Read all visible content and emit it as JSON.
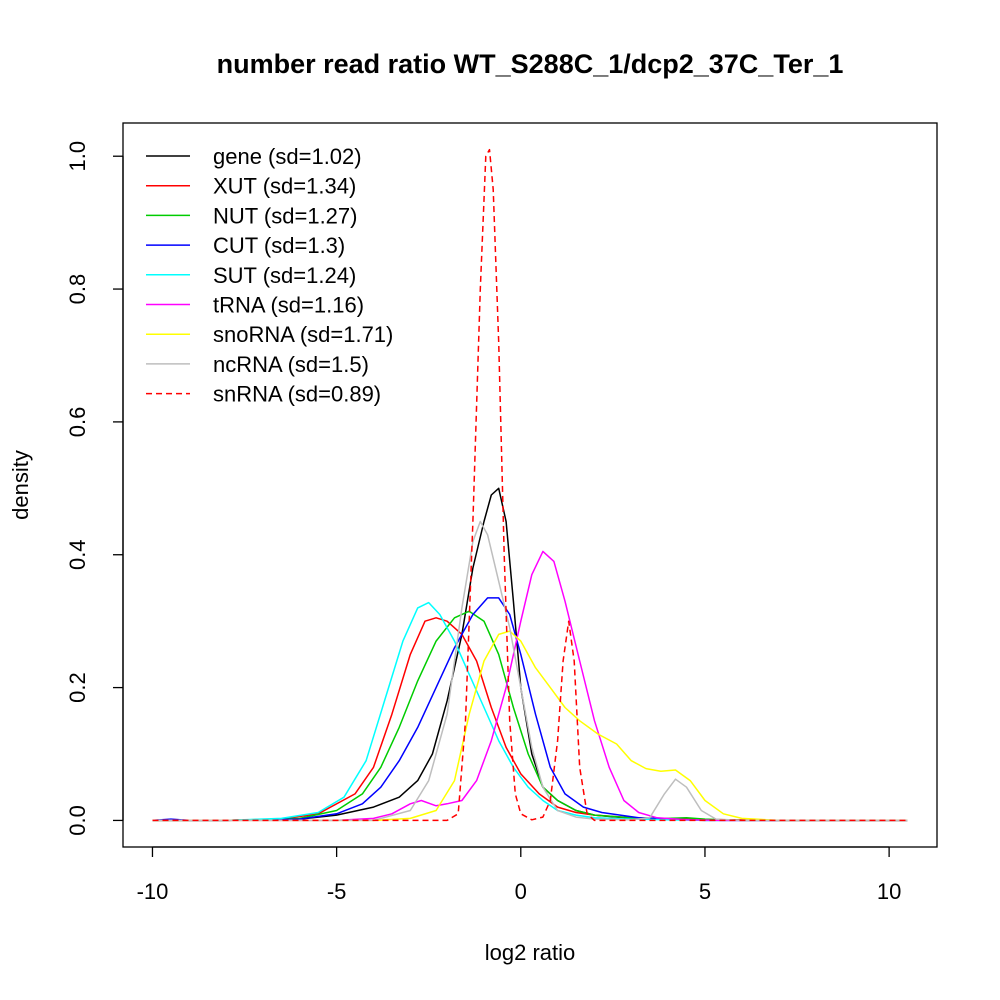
{
  "chart_data": {
    "type": "line",
    "title": "number read ratio WT_S288C_1/dcp2_37C_Ter_1",
    "xlabel": "log2 ratio",
    "ylabel": "density",
    "xlim": [
      -10.8,
      11.3
    ],
    "ylim": [
      -0.04,
      1.05
    ],
    "xticks": [
      -10,
      -5,
      0,
      5,
      10
    ],
    "xtick_labels": [
      "-10",
      "-5",
      "0",
      "5",
      "10"
    ],
    "yticks": [
      0.0,
      0.2,
      0.4,
      0.6,
      0.8,
      1.0
    ],
    "ytick_labels": [
      "0.0",
      "0.2",
      "0.4",
      "0.6",
      "0.8",
      "1.0"
    ],
    "legend_position": "top-left",
    "grid": false,
    "series": [
      {
        "name": "gene (sd=1.02)",
        "color": "#000000",
        "dash": "solid",
        "points": [
          [
            -10,
            0
          ],
          [
            -8,
            0
          ],
          [
            -6,
            0.002
          ],
          [
            -5,
            0.008
          ],
          [
            -4,
            0.02
          ],
          [
            -3.3,
            0.035
          ],
          [
            -2.8,
            0.06
          ],
          [
            -2.4,
            0.1
          ],
          [
            -2,
            0.18
          ],
          [
            -1.6,
            0.28
          ],
          [
            -1.3,
            0.38
          ],
          [
            -1,
            0.45
          ],
          [
            -0.8,
            0.49
          ],
          [
            -0.6,
            0.5
          ],
          [
            -0.4,
            0.45
          ],
          [
            -0.2,
            0.33
          ],
          [
            0,
            0.2
          ],
          [
            0.3,
            0.1
          ],
          [
            0.6,
            0.05
          ],
          [
            1,
            0.03
          ],
          [
            1.5,
            0.015
          ],
          [
            2,
            0.008
          ],
          [
            3,
            0.003
          ],
          [
            4,
            0.002
          ],
          [
            5,
            0.001
          ],
          [
            7,
            0
          ],
          [
            10.5,
            0
          ]
        ]
      },
      {
        "name": "XUT (sd=1.34)",
        "color": "#ff0000",
        "dash": "solid",
        "points": [
          [
            -10,
            0
          ],
          [
            -8,
            0
          ],
          [
            -6.5,
            0.002
          ],
          [
            -5.5,
            0.01
          ],
          [
            -4.5,
            0.04
          ],
          [
            -4,
            0.08
          ],
          [
            -3.5,
            0.16
          ],
          [
            -3,
            0.25
          ],
          [
            -2.6,
            0.3
          ],
          [
            -2.3,
            0.305
          ],
          [
            -2,
            0.3
          ],
          [
            -1.6,
            0.28
          ],
          [
            -1.2,
            0.24
          ],
          [
            -0.8,
            0.17
          ],
          [
            -0.4,
            0.11
          ],
          [
            0,
            0.07
          ],
          [
            0.5,
            0.04
          ],
          [
            1,
            0.02
          ],
          [
            1.5,
            0.012
          ],
          [
            2,
            0.008
          ],
          [
            3,
            0.004
          ],
          [
            4,
            0.002
          ],
          [
            5,
            0.001
          ],
          [
            7,
            0
          ],
          [
            10.5,
            0
          ]
        ]
      },
      {
        "name": "NUT (sd=1.27)",
        "color": "#00cc00",
        "dash": "solid",
        "points": [
          [
            -10,
            0
          ],
          [
            -8,
            0
          ],
          [
            -6,
            0.003
          ],
          [
            -5,
            0.015
          ],
          [
            -4.3,
            0.04
          ],
          [
            -3.8,
            0.08
          ],
          [
            -3.3,
            0.14
          ],
          [
            -2.8,
            0.21
          ],
          [
            -2.3,
            0.27
          ],
          [
            -1.8,
            0.305
          ],
          [
            -1.4,
            0.315
          ],
          [
            -1,
            0.3
          ],
          [
            -0.6,
            0.25
          ],
          [
            -0.2,
            0.17
          ],
          [
            0.2,
            0.1
          ],
          [
            0.6,
            0.05
          ],
          [
            1,
            0.03
          ],
          [
            1.5,
            0.015
          ],
          [
            2,
            0.008
          ],
          [
            3,
            0.004
          ],
          [
            4,
            0.003
          ],
          [
            4.5,
            0.004
          ],
          [
            5,
            0.002
          ],
          [
            6,
            0
          ],
          [
            10.5,
            0
          ]
        ]
      },
      {
        "name": "CUT (sd=1.3)",
        "color": "#0000ff",
        "dash": "solid",
        "points": [
          [
            -10,
            0
          ],
          [
            -9.5,
            0.002
          ],
          [
            -9,
            0
          ],
          [
            -8,
            0
          ],
          [
            -6,
            0.002
          ],
          [
            -5,
            0.01
          ],
          [
            -4.3,
            0.025
          ],
          [
            -3.8,
            0.05
          ],
          [
            -3.3,
            0.09
          ],
          [
            -2.8,
            0.14
          ],
          [
            -2.3,
            0.2
          ],
          [
            -1.8,
            0.26
          ],
          [
            -1.3,
            0.31
          ],
          [
            -0.9,
            0.335
          ],
          [
            -0.6,
            0.335
          ],
          [
            -0.3,
            0.31
          ],
          [
            0,
            0.25
          ],
          [
            0.4,
            0.16
          ],
          [
            0.8,
            0.08
          ],
          [
            1.2,
            0.04
          ],
          [
            1.7,
            0.02
          ],
          [
            2.2,
            0.012
          ],
          [
            2.7,
            0.008
          ],
          [
            3.2,
            0.004
          ],
          [
            4,
            0.002
          ],
          [
            5,
            0
          ],
          [
            10.5,
            0
          ]
        ]
      },
      {
        "name": "SUT (sd=1.24)",
        "color": "#00ffff",
        "dash": "solid",
        "points": [
          [
            -10,
            0
          ],
          [
            -8,
            0
          ],
          [
            -6.5,
            0.003
          ],
          [
            -5.5,
            0.012
          ],
          [
            -4.8,
            0.035
          ],
          [
            -4.2,
            0.09
          ],
          [
            -3.7,
            0.18
          ],
          [
            -3.2,
            0.27
          ],
          [
            -2.8,
            0.32
          ],
          [
            -2.5,
            0.328
          ],
          [
            -2.2,
            0.31
          ],
          [
            -1.8,
            0.27
          ],
          [
            -1.4,
            0.22
          ],
          [
            -1,
            0.17
          ],
          [
            -0.6,
            0.12
          ],
          [
            -0.2,
            0.08
          ],
          [
            0.2,
            0.05
          ],
          [
            0.6,
            0.03
          ],
          [
            1,
            0.015
          ],
          [
            1.5,
            0.008
          ],
          [
            2,
            0.004
          ],
          [
            3,
            0.002
          ],
          [
            4,
            0.001
          ],
          [
            5,
            0
          ],
          [
            10.5,
            0
          ]
        ]
      },
      {
        "name": "tRNA (sd=1.16)",
        "color": "#ff00ff",
        "dash": "solid",
        "points": [
          [
            -10,
            0
          ],
          [
            -8,
            0
          ],
          [
            -5,
            0
          ],
          [
            -4,
            0.003
          ],
          [
            -3.5,
            0.01
          ],
          [
            -3,
            0.025
          ],
          [
            -2.7,
            0.03
          ],
          [
            -2.3,
            0.022
          ],
          [
            -2,
            0.025
          ],
          [
            -1.6,
            0.03
          ],
          [
            -1.2,
            0.06
          ],
          [
            -0.8,
            0.12
          ],
          [
            -0.4,
            0.2
          ],
          [
            0,
            0.3
          ],
          [
            0.3,
            0.37
          ],
          [
            0.6,
            0.405
          ],
          [
            0.9,
            0.39
          ],
          [
            1.2,
            0.33
          ],
          [
            1.6,
            0.24
          ],
          [
            2,
            0.15
          ],
          [
            2.4,
            0.08
          ],
          [
            2.8,
            0.03
          ],
          [
            3.2,
            0.012
          ],
          [
            3.7,
            0.004
          ],
          [
            4.5,
            0.001
          ],
          [
            5.5,
            0
          ],
          [
            10.5,
            0
          ]
        ]
      },
      {
        "name": "snoRNA (sd=1.71)",
        "color": "#ffff00",
        "dash": "solid",
        "points": [
          [
            -10,
            0
          ],
          [
            -8,
            0
          ],
          [
            -4,
            0
          ],
          [
            -3,
            0.003
          ],
          [
            -2.3,
            0.015
          ],
          [
            -1.8,
            0.06
          ],
          [
            -1.4,
            0.16
          ],
          [
            -1,
            0.24
          ],
          [
            -0.6,
            0.28
          ],
          [
            -0.3,
            0.285
          ],
          [
            0,
            0.27
          ],
          [
            0.4,
            0.23
          ],
          [
            0.8,
            0.2
          ],
          [
            1.2,
            0.17
          ],
          [
            1.6,
            0.15
          ],
          [
            2.1,
            0.13
          ],
          [
            2.6,
            0.115
          ],
          [
            3,
            0.09
          ],
          [
            3.4,
            0.078
          ],
          [
            3.8,
            0.074
          ],
          [
            4.2,
            0.076
          ],
          [
            4.6,
            0.06
          ],
          [
            5,
            0.03
          ],
          [
            5.5,
            0.01
          ],
          [
            6,
            0.003
          ],
          [
            7,
            0
          ],
          [
            10.5,
            0
          ]
        ]
      },
      {
        "name": "ncRNA (sd=1.5)",
        "color": "#bebebe",
        "dash": "solid",
        "points": [
          [
            -10,
            0
          ],
          [
            -8,
            0
          ],
          [
            -4,
            0
          ],
          [
            -3,
            0.015
          ],
          [
            -2.5,
            0.06
          ],
          [
            -2,
            0.16
          ],
          [
            -1.6,
            0.32
          ],
          [
            -1.3,
            0.42
          ],
          [
            -1.1,
            0.45
          ],
          [
            -0.9,
            0.43
          ],
          [
            -0.6,
            0.36
          ],
          [
            -0.3,
            0.29
          ],
          [
            0,
            0.2
          ],
          [
            0.3,
            0.11
          ],
          [
            0.6,
            0.05
          ],
          [
            1,
            0.015
          ],
          [
            1.5,
            0.005
          ],
          [
            2,
            0.002
          ],
          [
            3,
            0.001
          ],
          [
            3.5,
            0.004
          ],
          [
            3.9,
            0.04
          ],
          [
            4.2,
            0.062
          ],
          [
            4.5,
            0.05
          ],
          [
            4.9,
            0.015
          ],
          [
            5.3,
            0.002
          ],
          [
            6,
            0
          ],
          [
            10.5,
            0
          ]
        ]
      },
      {
        "name": "snRNA (sd=0.89)",
        "color": "#ff0000",
        "dash": "dashed",
        "points": [
          [
            -10,
            0
          ],
          [
            -8,
            0
          ],
          [
            -3,
            0
          ],
          [
            -2,
            0
          ],
          [
            -1.7,
            0.01
          ],
          [
            -1.5,
            0.15
          ],
          [
            -1.3,
            0.45
          ],
          [
            -1.1,
            0.8
          ],
          [
            -0.95,
            1.0
          ],
          [
            -0.85,
            1.01
          ],
          [
            -0.75,
            0.95
          ],
          [
            -0.6,
            0.72
          ],
          [
            -0.45,
            0.4
          ],
          [
            -0.3,
            0.15
          ],
          [
            -0.15,
            0.04
          ],
          [
            0,
            0.01
          ],
          [
            0.3,
            0.001
          ],
          [
            0.6,
            0.005
          ],
          [
            0.8,
            0.03
          ],
          [
            1,
            0.12
          ],
          [
            1.15,
            0.24
          ],
          [
            1.3,
            0.3
          ],
          [
            1.45,
            0.24
          ],
          [
            1.6,
            0.08
          ],
          [
            1.8,
            0.01
          ],
          [
            2,
            0
          ],
          [
            10.5,
            0
          ]
        ]
      }
    ]
  }
}
